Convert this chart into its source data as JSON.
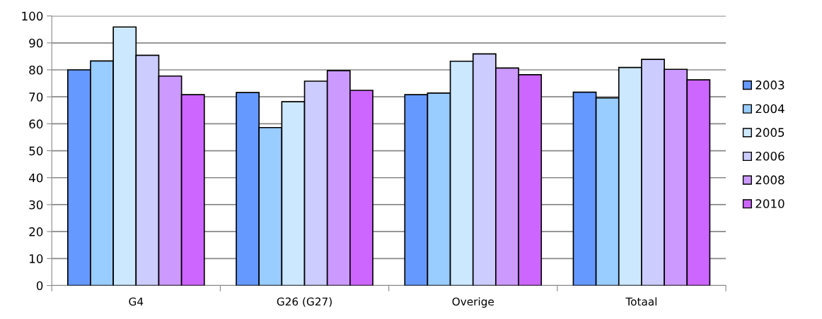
{
  "chart_data": {
    "type": "bar",
    "categories": [
      "G4",
      "G26 (G27)",
      "Overige",
      "Totaal"
    ],
    "series": [
      {
        "name": "2003",
        "color": "#6699ff",
        "values": [
          80.0,
          71.6,
          70.8,
          71.7
        ]
      },
      {
        "name": "2004",
        "color": "#99ccff",
        "values": [
          83.3,
          58.6,
          71.4,
          69.6
        ]
      },
      {
        "name": "2005",
        "color": "#cce8ff",
        "values": [
          95.9,
          68.2,
          83.2,
          80.9
        ]
      },
      {
        "name": "2006",
        "color": "#ccccff",
        "values": [
          85.4,
          75.8,
          85.9,
          83.9
        ]
      },
      {
        "name": "2008",
        "color": "#cc99ff",
        "values": [
          77.7,
          79.7,
          80.7,
          80.2
        ]
      },
      {
        "name": "2010",
        "color": "#cc66ff",
        "values": [
          70.8,
          72.4,
          78.2,
          76.3
        ]
      }
    ],
    "ylim": [
      0,
      100
    ],
    "yticks": [
      0,
      10,
      20,
      30,
      40,
      50,
      60,
      70,
      80,
      90,
      100
    ],
    "grid": "y",
    "legend": "right"
  }
}
